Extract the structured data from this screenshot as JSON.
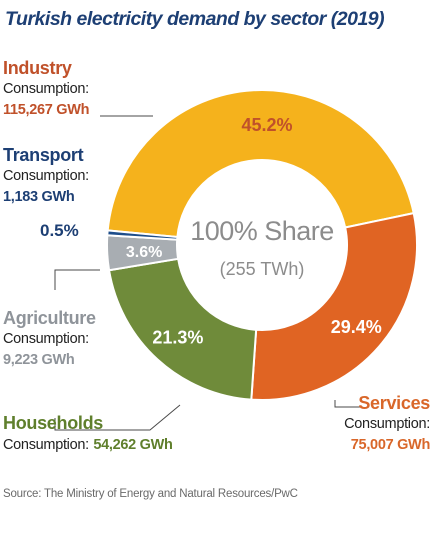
{
  "title": "Turkish electricity demand by sector (2019)",
  "center": {
    "line1": "100% Share",
    "line2": "(255 TWh)"
  },
  "consumption_label": "Consumption:",
  "source": "Source: The Ministry of Energy and Natural Resources/PwC",
  "chart_data": {
    "type": "pie",
    "title": "Turkish electricity demand by sector (2019)",
    "total_label": "100% Share",
    "total": "(255 TWh)",
    "unit": "%",
    "slices": [
      {
        "name": "Industry",
        "value": 45.2,
        "label": "45.2%",
        "consumption": "115,267 GWh",
        "color": "#f5b21c",
        "name_color": "#c0512a"
      },
      {
        "name": "Services",
        "value": 29.4,
        "label": "29.4%",
        "consumption": "75,007 GWh",
        "color": "#e06423",
        "name_color": "#d9672a"
      },
      {
        "name": "Households",
        "value": 21.3,
        "label": "21.3%",
        "consumption": "54,262 GWh",
        "color": "#6f8b3a",
        "name_color": "#5f7f2c"
      },
      {
        "name": "Agriculture",
        "value": 3.6,
        "label": "3.6%",
        "consumption": "9,223 GWh",
        "color": "#a8adb2",
        "name_color": "#8f949a"
      },
      {
        "name": "Transport",
        "value": 0.5,
        "label": "0.5%",
        "consumption": "1,183 GWh",
        "color": "#1d4d8a",
        "name_color": "#1d3f74"
      }
    ]
  }
}
